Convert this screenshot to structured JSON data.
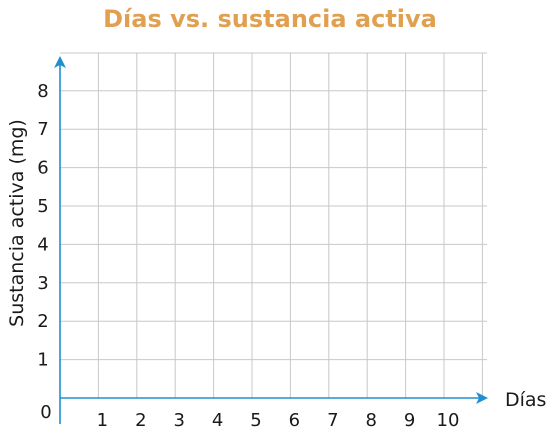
{
  "chart_data": {
    "type": "line",
    "title": "Días vs. sustancia activa",
    "xlabel": "Días",
    "ylabel": "Sustancia activa (mg)",
    "origin_label": "0",
    "x_ticks": [
      "1",
      "2",
      "3",
      "4",
      "5",
      "6",
      "7",
      "8",
      "9",
      "10"
    ],
    "y_ticks": [
      "1",
      "2",
      "3",
      "4",
      "5",
      "6",
      "7",
      "8"
    ],
    "xlim": [
      0,
      11
    ],
    "ylim": [
      0,
      9
    ],
    "grid": true,
    "series": []
  },
  "colors": {
    "title": "#e0a050",
    "axis": "#1e90d0",
    "grid": "#c8c8c8",
    "text": "#1a1a1a"
  }
}
